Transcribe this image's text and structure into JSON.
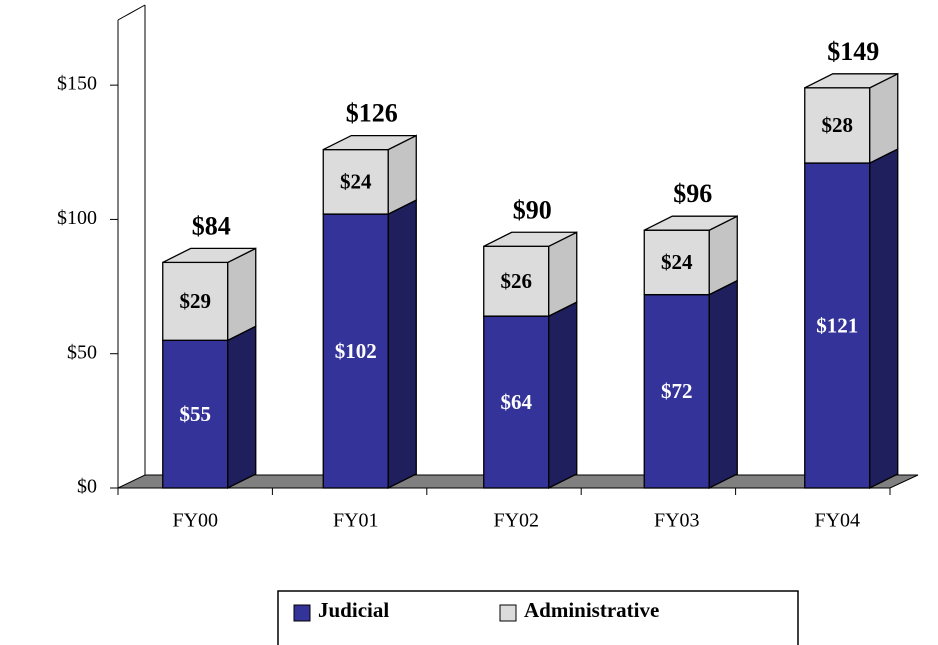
{
  "chart_data": {
    "type": "bar3d_stacked",
    "categories": [
      "FY00",
      "FY01",
      "FY02",
      "FY03",
      "FY04"
    ],
    "series": [
      {
        "name": "Judicial",
        "color": "#333399",
        "side_color": "#1f1f5e",
        "label_color": "#ffffff",
        "values": [
          55,
          102,
          64,
          72,
          121
        ],
        "value_labels": [
          "$55",
          "$102",
          "$64",
          "$72",
          "$121"
        ]
      },
      {
        "name": "Administrative",
        "color": "#dcdcdc",
        "side_color": "#c4c4c4",
        "label_color": "#000000",
        "values": [
          29,
          24,
          26,
          24,
          28
        ],
        "value_labels": [
          "$29",
          "$24",
          "$26",
          "$24",
          "$28"
        ]
      }
    ],
    "totals": [
      84,
      126,
      90,
      96,
      149
    ],
    "total_labels": [
      "$84",
      "$126",
      "$90",
      "$96",
      "$149"
    ],
    "ylim": [
      0,
      175
    ],
    "yticks": [
      {
        "value": 0,
        "label": "$0"
      },
      {
        "value": 50,
        "label": "$50"
      },
      {
        "value": 100,
        "label": "$100"
      },
      {
        "value": 150,
        "label": "$150"
      }
    ],
    "grid": false,
    "legend": "bottom"
  }
}
